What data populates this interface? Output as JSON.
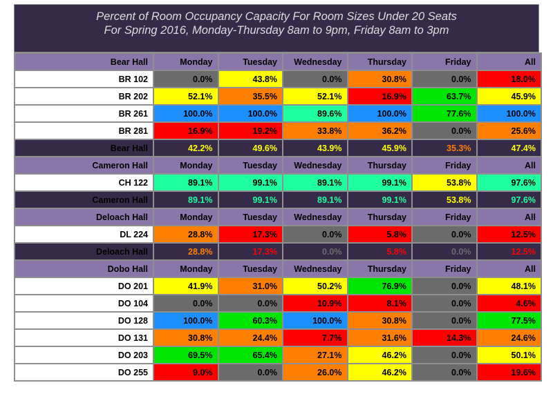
{
  "title": {
    "line1": "Percent of Room Occupancy Capacity For Room Sizes Under 20 Seats",
    "line2": "For Spring 2016, Monday-Thursday 8am to 9pm, Friday 8am to 3pm"
  },
  "columns": [
    "Monday",
    "Tuesday",
    "Wednesday",
    "Thursday",
    "Friday",
    "All"
  ],
  "colors": {
    "gray": "#6b6b6b",
    "yellow": "#ffff00",
    "orange": "#ff7f00",
    "red": "#ff0000",
    "green": "#00e600",
    "blue": "#1e8fff",
    "teal": "#1fffa0",
    "header_bg": "#8a76a8",
    "title_bg": "#352b48"
  },
  "halls": [
    {
      "name": "Bear Hall",
      "rooms": [
        {
          "name": "BR 102",
          "values": [
            "0.0%",
            "43.8%",
            "0.0%",
            "30.8%",
            "0.0%",
            "18.0%"
          ],
          "colors": [
            "gray",
            "yellow",
            "gray",
            "orange",
            "gray",
            "red"
          ]
        },
        {
          "name": "BR 202",
          "values": [
            "52.1%",
            "35.5%",
            "52.1%",
            "16.9%",
            "63.7%",
            "45.9%"
          ],
          "colors": [
            "yellow",
            "orange",
            "yellow",
            "red",
            "green",
            "yellow"
          ]
        },
        {
          "name": "BR 261",
          "values": [
            "100.0%",
            "100.0%",
            "89.6%",
            "100.0%",
            "77.6%",
            "100.0%"
          ],
          "colors": [
            "blue",
            "blue",
            "teal",
            "blue",
            "green",
            "blue"
          ]
        },
        {
          "name": "BR 281",
          "values": [
            "16.9%",
            "19.2%",
            "33.8%",
            "36.2%",
            "0.0%",
            "25.6%"
          ],
          "colors": [
            "red",
            "red",
            "orange",
            "orange",
            "gray",
            "orange"
          ]
        }
      ],
      "total": {
        "name": "Bear Hall",
        "values": [
          "42.2%",
          "49.6%",
          "43.9%",
          "45.9%",
          "35.3%",
          "47.4%"
        ],
        "colors": [
          "yellow",
          "yellow",
          "yellow",
          "yellow",
          "orange",
          "yellow"
        ]
      }
    },
    {
      "name": "Cameron Hall",
      "rooms": [
        {
          "name": "CH 122",
          "values": [
            "89.1%",
            "99.1%",
            "89.1%",
            "99.1%",
            "53.8%",
            "97.6%"
          ],
          "colors": [
            "teal",
            "teal",
            "teal",
            "teal",
            "yellow",
            "teal"
          ]
        }
      ],
      "total": {
        "name": "Cameron Hall",
        "values": [
          "89.1%",
          "99.1%",
          "89.1%",
          "99.1%",
          "53.8%",
          "97.6%"
        ],
        "colors": [
          "teal",
          "teal",
          "teal",
          "teal",
          "yellow",
          "teal"
        ]
      }
    },
    {
      "name": "Deloach Hall",
      "rooms": [
        {
          "name": "DL 224",
          "values": [
            "28.8%",
            "17.3%",
            "0.0%",
            "5.8%",
            "0.0%",
            "12.5%"
          ],
          "colors": [
            "orange",
            "red",
            "gray",
            "red",
            "gray",
            "red"
          ]
        }
      ],
      "total": {
        "name": "Deloach Hall",
        "values": [
          "28.8%",
          "17.3%",
          "0.0%",
          "5.8%",
          "0.0%",
          "12.5%"
        ],
        "colors": [
          "orange",
          "red",
          "gray",
          "red",
          "gray",
          "red"
        ]
      }
    },
    {
      "name": "Dobo Hall",
      "rooms": [
        {
          "name": "DO 201",
          "values": [
            "41.9%",
            "31.0%",
            "50.2%",
            "76.9%",
            "0.0%",
            "48.1%"
          ],
          "colors": [
            "yellow",
            "orange",
            "yellow",
            "green",
            "gray",
            "yellow"
          ]
        },
        {
          "name": "DO 104",
          "values": [
            "0.0%",
            "0.0%",
            "10.9%",
            "8.1%",
            "0.0%",
            "4.6%"
          ],
          "colors": [
            "gray",
            "gray",
            "red",
            "red",
            "gray",
            "red"
          ]
        },
        {
          "name": "DO 128",
          "values": [
            "100.0%",
            "60.3%",
            "100.0%",
            "30.8%",
            "0.0%",
            "77.5%"
          ],
          "colors": [
            "blue",
            "green",
            "blue",
            "orange",
            "gray",
            "green"
          ]
        },
        {
          "name": "DO 131",
          "values": [
            "30.8%",
            "24.4%",
            "7.7%",
            "31.6%",
            "14.3%",
            "24.6%"
          ],
          "colors": [
            "orange",
            "orange",
            "red",
            "orange",
            "red",
            "orange"
          ]
        },
        {
          "name": "DO 203",
          "values": [
            "69.5%",
            "65.4%",
            "27.1%",
            "46.2%",
            "0.0%",
            "50.1%"
          ],
          "colors": [
            "green",
            "green",
            "orange",
            "yellow",
            "gray",
            "yellow"
          ]
        },
        {
          "name": "DO 255",
          "values": [
            "9.0%",
            "0.0%",
            "26.0%",
            "46.2%",
            "0.0%",
            "19.6%"
          ],
          "colors": [
            "red",
            "gray",
            "orange",
            "yellow",
            "gray",
            "red"
          ]
        }
      ]
    }
  ]
}
